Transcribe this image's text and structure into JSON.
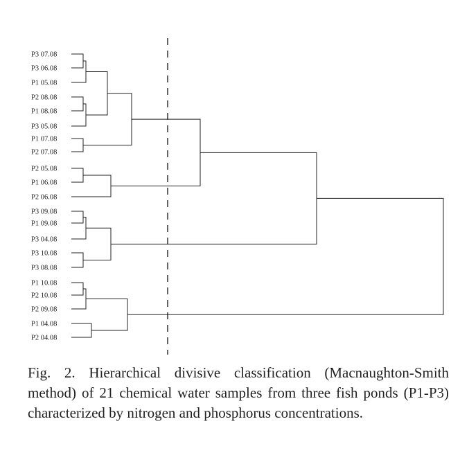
{
  "figure": {
    "leaves": [
      "P3 07.08",
      "P3 06.08",
      "P1 05.08",
      "P2 08.08",
      "P1 08.08",
      "P3 05.08",
      "P1 07.08",
      "P2 07.08",
      "P2 05.08",
      "P1 06.08",
      "P2 06.08",
      "P3 09.08",
      "P1 09.08",
      "P3 04.08",
      "P3 10.08",
      "P3 08.08",
      "P1 10.08",
      "P2 10.08",
      "P2 09.08",
      "P1 04.08",
      "P2 04.08"
    ],
    "has_cut_line": true
  },
  "caption": "Fig. 2. Hierarchical divisive classification (Macnaughton-Smith method) of 21 chemical water samples from three fish ponds (P1-P3) characterized by nitrogen and phosphorus concentrations."
}
